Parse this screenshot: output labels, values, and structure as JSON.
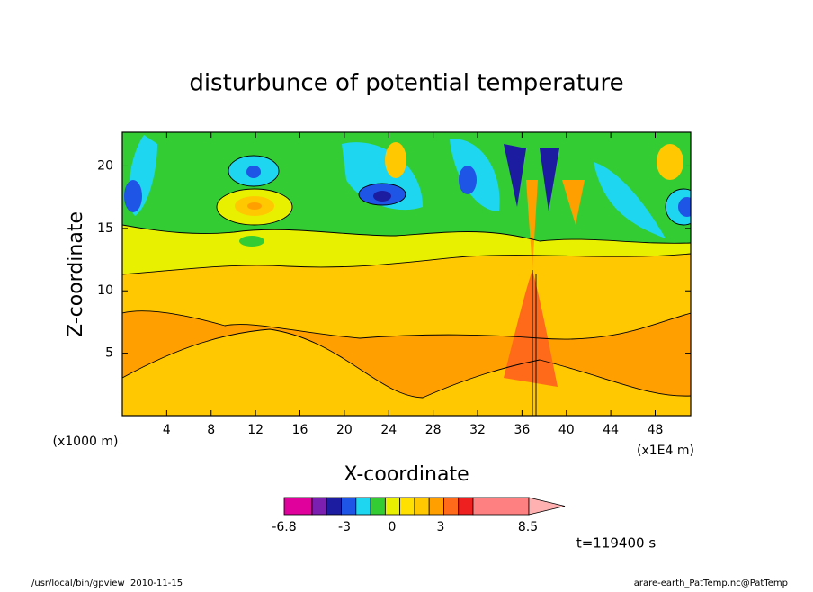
{
  "chart_data": {
    "type": "contour",
    "title": "disturbunce of potential temperature",
    "x_label": "X-coordinate",
    "y_label": "Z-coordinate",
    "x_unit": "(x1E4 m)",
    "y_unit": "(x1000 m)",
    "xlim": [
      0,
      51.2
    ],
    "ylim": [
      0,
      22.7
    ],
    "xticks": [
      4,
      8,
      12,
      16,
      20,
      24,
      28,
      32,
      36,
      40,
      44,
      48
    ],
    "yticks": [
      5,
      10,
      15,
      20
    ],
    "colorbar": {
      "ticks": [
        -6.8,
        -3,
        0,
        3,
        8.5
      ],
      "colors": [
        "#e0009c",
        "#7a1fb0",
        "#1c1ca0",
        "#1f55e6",
        "#1fd6f0",
        "#33cc33",
        "#e8f000",
        "#ffe000",
        "#ffc800",
        "#ffa000",
        "#ff6a1a",
        "#ee2020",
        "#ff8080",
        "#ffb0b0"
      ]
    },
    "annotation": "t=119400 s"
  },
  "footer": {
    "left": "/usr/local/bin/gpview  2010-11-15",
    "right": "arare-earth_PatTemp.nc@PatTemp"
  }
}
